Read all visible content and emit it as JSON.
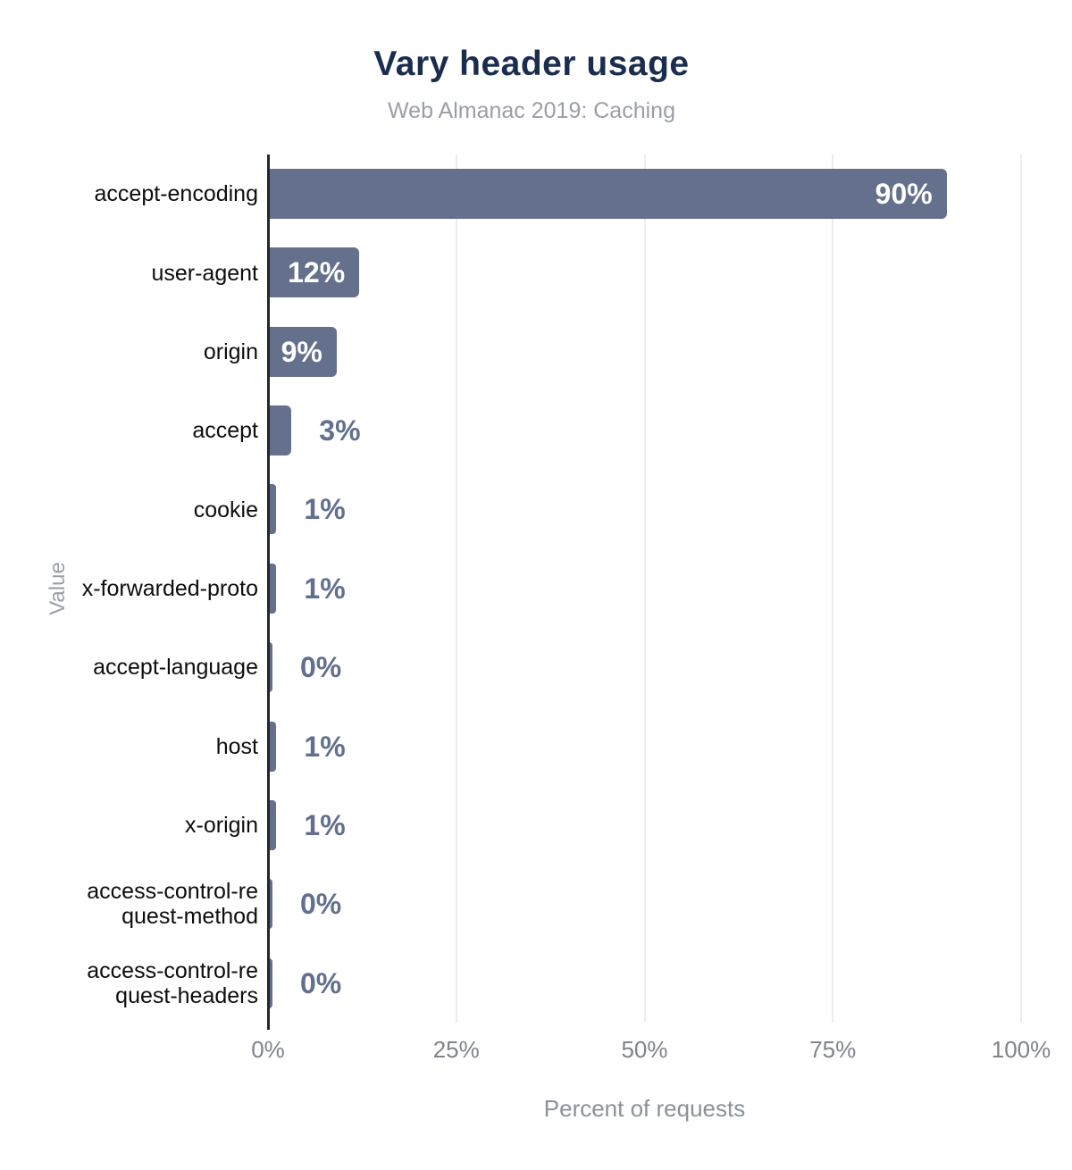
{
  "title": "Vary header usage",
  "subtitle": "Web Almanac 2019: Caching",
  "colors": {
    "title_text": "#1b2d4f",
    "subtitle_text": "#9a9ea6",
    "bar": "#64708c",
    "value_inside": "#ffffff",
    "value_outside": "#62708f",
    "category_text": "#0d0d0d",
    "tick_text": "#7f838a",
    "axis_title_text": "#8b9099",
    "axis_line": "#26272b",
    "gridline": "#ededed"
  },
  "chart_data": {
    "type": "bar",
    "orientation": "horizontal",
    "title": "Vary header usage",
    "subtitle": "Web Almanac 2019: Caching",
    "xlabel": "Percent of requests",
    "ylabel": "Value",
    "xlim": [
      0,
      100
    ],
    "x_ticks": [
      "0%",
      "25%",
      "50%",
      "75%",
      "100%"
    ],
    "grid": true,
    "legend": false,
    "categories": [
      "accept-encoding",
      "user-agent",
      "origin",
      "accept",
      "cookie",
      "x-forwarded-proto",
      "accept-language",
      "host",
      "x-origin",
      "access-control-request-method",
      "access-control-request-headers"
    ],
    "category_display": [
      "accept-encoding",
      "user-agent",
      "origin",
      "accept",
      "cookie",
      "x-forwarded-proto",
      "accept-language",
      "host",
      "x-origin",
      "access-control-re\nquest-method",
      "access-control-re\nquest-headers"
    ],
    "values": [
      90,
      12,
      9,
      3,
      1,
      1,
      0,
      1,
      1,
      0,
      0
    ],
    "value_labels": [
      "90%",
      "12%",
      "9%",
      "3%",
      "1%",
      "1%",
      "0%",
      "1%",
      "1%",
      "0%",
      "0%"
    ],
    "inside_label_min_value": 9
  }
}
